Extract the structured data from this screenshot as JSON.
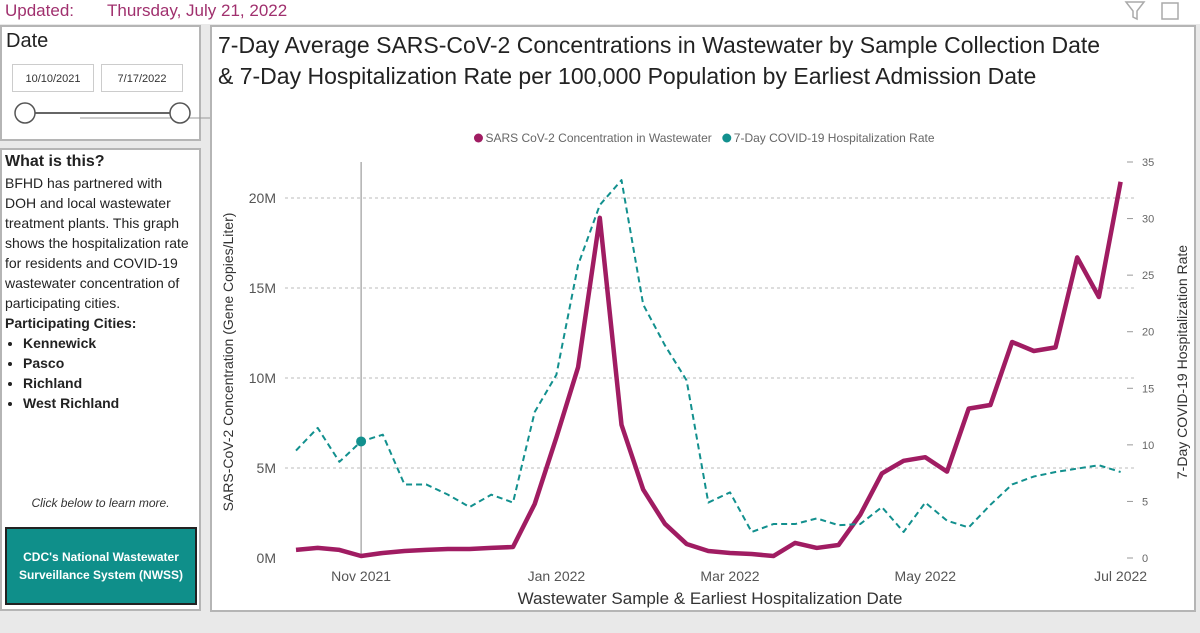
{
  "header": {
    "label": "Updated:",
    "date": "Thursday, July 21, 2022"
  },
  "date_slicer": {
    "title": "Date",
    "start": "10/10/2021",
    "end": "7/17/2022"
  },
  "info": {
    "title": "What is this?",
    "text": "BFHD has partnered with DOH and local wastewater treatment plants. This graph shows the hospitalization rate for residents and COVID-19 wastewater concentration of participating cities.",
    "cities_title": "Participating Cities:",
    "cities": [
      "Kennewick",
      "Pasco",
      "Richland",
      "West Richland"
    ],
    "note": "Click below to learn more."
  },
  "button": {
    "label": "CDC's National Wastewater Surveillance System (NWSS)"
  },
  "chart_data": {
    "type": "line",
    "title": "7-Day Average SARS-CoV-2 Concentrations in Wastewater by Sample Collection Date & 7-Day Hospitalization Rate per 100,000 Population by Earliest Admission Date",
    "xlabel": "Wastewater Sample & Earliest Hospitalization Date",
    "ylabel": "SARS-CoV-2 Concentration (Gene Copies/Liter)",
    "y2label": "7-Day COVID-19 Hospitalization Rate",
    "legend": "top",
    "grid": true,
    "hover_index": 3,
    "categories": [
      null,
      null,
      null,
      "Nov 2021",
      null,
      null,
      null,
      null,
      null,
      null,
      null,
      null,
      "Jan 2022",
      null,
      null,
      null,
      null,
      null,
      null,
      null,
      "Mar 2022",
      null,
      null,
      null,
      null,
      null,
      null,
      null,
      null,
      "May 2022",
      null,
      null,
      null,
      null,
      null,
      null,
      null,
      null,
      "Jul 2022"
    ],
    "ylim": [
      0,
      22000000
    ],
    "yticks": [
      {
        "value": 0,
        "label": "0M"
      },
      {
        "value": 5000000,
        "label": "5M"
      },
      {
        "value": 10000000,
        "label": "10M"
      },
      {
        "value": 15000000,
        "label": "15M"
      },
      {
        "value": 20000000,
        "label": "20M"
      }
    ],
    "y2lim": [
      0,
      35
    ],
    "y2ticks": [
      0,
      5,
      10,
      15,
      20,
      25,
      30,
      35
    ],
    "series": [
      {
        "name": "SARS CoV-2 Concentration in Wastewater",
        "color": "#a01c62",
        "axis": "y",
        "dashed": false,
        "values": [
          450000,
          560000,
          450000,
          110000,
          280000,
          390000,
          450000,
          500000,
          500000,
          560000,
          610000,
          3000000,
          6700000,
          10600000,
          18900000,
          7400000,
          3800000,
          1900000,
          780000,
          390000,
          280000,
          220000,
          110000,
          840000,
          560000,
          720000,
          2400000,
          4700000,
          5400000,
          5600000,
          4800000,
          8300000,
          8500000,
          12000000,
          11500000,
          11700000,
          16700000,
          14500000,
          20900000
        ]
      },
      {
        "name": "7-Day COVID-19 Hospitalization Rate",
        "color": "#12908e",
        "axis": "y2",
        "dashed": true,
        "values": [
          9.5,
          11.5,
          8.5,
          10.3,
          10.9,
          6.5,
          6.5,
          5.6,
          4.5,
          5.6,
          4.9,
          12.9,
          16.2,
          25.9,
          31.2,
          33.4,
          22.4,
          18.8,
          15.7,
          4.9,
          5.8,
          2.3,
          3.0,
          3.0,
          3.5,
          2.9,
          3.0,
          4.5,
          2.3,
          4.9,
          3.3,
          2.7,
          4.7,
          6.5,
          7.2,
          7.6,
          7.9,
          8.2,
          7.6
        ]
      }
    ]
  }
}
